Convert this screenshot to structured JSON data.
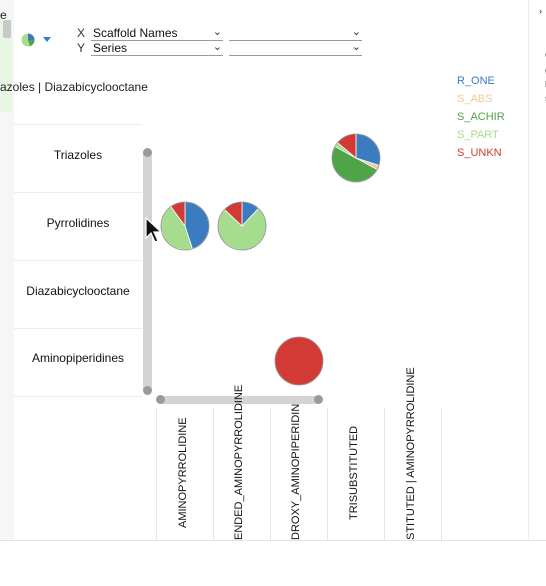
{
  "left_panel": {
    "label": "e"
  },
  "x_axis": {
    "letter": "X",
    "column": "Scaffold Names",
    "secondary": ""
  },
  "y_axis": {
    "letter": "Y",
    "column": "Series",
    "secondary": ""
  },
  "header_label": "azoles | Diazabicyclooctane",
  "rows": [
    "Triazoles",
    "Pyrrolidines",
    "Diazabicyclooctane",
    "Aminopiperidines"
  ],
  "columns": [
    "AMINOPYRROLIDINE",
    "ENDED_AMINOPYRROLIDINE",
    "DROXY_AMINOPIPERIDIN",
    "TRISUBSTITUTED",
    "STITUTED | AMINOPYRROLIDINE"
  ],
  "legend": [
    {
      "label": "R_ONE",
      "color": "#3b7bbf"
    },
    {
      "label": "S_ABS",
      "color": "#f3c79e"
    },
    {
      "label": "S_ACHIR",
      "color": "#4ea447"
    },
    {
      "label": "S_PART",
      "color": "#a6dc8e"
    },
    {
      "label": "S_UNKN",
      "color": "#d23a35"
    }
  ],
  "chart_data": {
    "type": "pie",
    "legend_position": "top-right",
    "categories": [
      "R_ONE",
      "S_ABS",
      "S_ACHIR",
      "S_PART",
      "S_UNKN"
    ],
    "pies": [
      {
        "row": "Triazoles",
        "column": "TRISUBSTITUTED",
        "values": [
          0.3,
          0.03,
          0.5,
          0.03,
          0.14
        ]
      },
      {
        "row": "Pyrrolidines",
        "column": "AMINOPYRROLIDINE",
        "values": [
          0.45,
          0,
          0,
          0.45,
          0.1
        ]
      },
      {
        "row": "Pyrrolidines",
        "column": "ENDED_AMINOPYRROLIDINE",
        "values": [
          0.12,
          0,
          0,
          0.75,
          0.13
        ]
      },
      {
        "row": "Aminopiperidines",
        "column": "DROXY_AMINOPIPERIDIN",
        "values": [
          0,
          0,
          0,
          0,
          1
        ]
      }
    ]
  },
  "right_pane": {
    "chars": [
      "c",
      "g",
      "h",
      "s"
    ]
  }
}
